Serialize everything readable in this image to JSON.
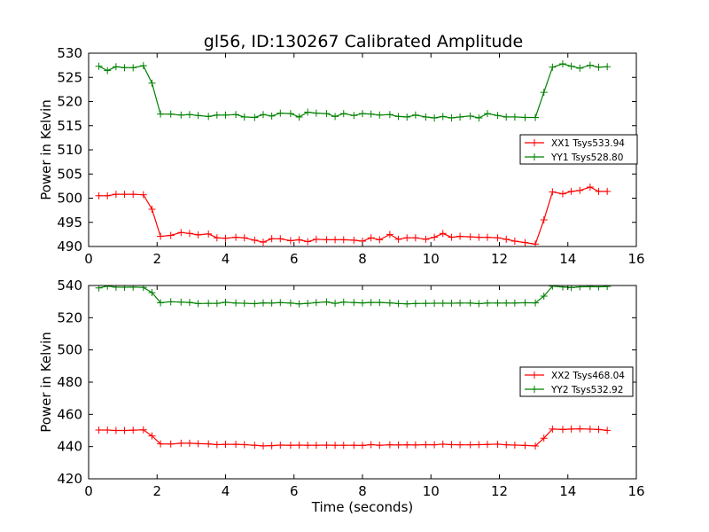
{
  "title": "gl56, ID:130267 Calibrated Amplitude",
  "chart_data": [
    {
      "type": "line",
      "title": "gl56, ID:130267 Calibrated Amplitude",
      "xlabel": "",
      "ylabel": "Power in Kelvin",
      "xlim": [
        0,
        16
      ],
      "ylim": [
        490,
        530
      ],
      "xticks": [
        0,
        2,
        4,
        6,
        8,
        10,
        12,
        14,
        16
      ],
      "yticks": [
        490,
        495,
        500,
        505,
        510,
        515,
        520,
        525,
        530
      ],
      "grid": false,
      "legend_position": "center-right",
      "x": [
        0.3,
        0.55,
        0.8,
        1.05,
        1.3,
        1.6,
        1.85,
        2.1,
        2.4,
        2.7,
        2.95,
        3.2,
        3.5,
        3.75,
        4.0,
        4.3,
        4.55,
        4.85,
        5.1,
        5.35,
        5.6,
        5.9,
        6.15,
        6.4,
        6.65,
        6.95,
        7.2,
        7.45,
        7.75,
        8.0,
        8.25,
        8.5,
        8.8,
        9.05,
        9.3,
        9.55,
        9.85,
        10.1,
        10.35,
        10.6,
        10.85,
        11.15,
        11.4,
        11.65,
        11.95,
        12.2,
        12.45,
        12.75,
        13.05,
        13.3,
        13.55,
        13.85,
        14.1,
        14.35,
        14.65,
        14.9,
        15.15
      ],
      "series": [
        {
          "name": "XX1 Tsys533.94",
          "color": "#ff0000",
          "values": [
            500.5,
            500.5,
            500.8,
            500.8,
            500.8,
            500.7,
            497.7,
            492.1,
            492.3,
            492.9,
            492.7,
            492.4,
            492.6,
            491.8,
            491.7,
            491.9,
            491.8,
            491.3,
            490.9,
            491.6,
            491.6,
            491.2,
            491.4,
            491.0,
            491.5,
            491.4,
            491.4,
            491.4,
            491.3,
            491.1,
            491.8,
            491.4,
            492.5,
            491.5,
            491.8,
            491.8,
            491.5,
            491.9,
            492.7,
            491.9,
            492.1,
            492.0,
            491.9,
            491.9,
            491.8,
            491.5,
            491.1,
            490.8,
            490.5,
            495.5,
            501.3,
            500.9,
            501.4,
            501.6,
            502.3,
            501.4,
            501.4
          ]
        },
        {
          "name": "YY1 Tsys528.80",
          "color": "#008000",
          "values": [
            527.3,
            526.4,
            527.2,
            527.0,
            527.0,
            527.4,
            523.8,
            517.4,
            517.4,
            517.2,
            517.3,
            517.1,
            516.9,
            517.2,
            517.2,
            517.3,
            516.8,
            516.7,
            517.3,
            517.0,
            517.6,
            517.5,
            516.8,
            517.8,
            517.6,
            517.5,
            516.9,
            517.5,
            517.1,
            517.5,
            517.4,
            517.2,
            517.3,
            516.9,
            516.8,
            517.2,
            516.8,
            516.6,
            516.9,
            516.6,
            516.8,
            517.0,
            516.6,
            517.5,
            517.1,
            516.8,
            516.8,
            516.7,
            516.7,
            521.9,
            527.1,
            527.8,
            527.3,
            526.9,
            527.5,
            527.1,
            527.2
          ]
        }
      ]
    },
    {
      "type": "line",
      "title": "",
      "xlabel": "Time (seconds)",
      "ylabel": "Power in Kelvin",
      "xlim": [
        0,
        16
      ],
      "ylim": [
        420,
        540
      ],
      "xticks": [
        0,
        2,
        4,
        6,
        8,
        10,
        12,
        14,
        16
      ],
      "yticks": [
        420,
        440,
        460,
        480,
        500,
        520,
        540
      ],
      "grid": false,
      "legend_position": "center-right",
      "x": [
        0.3,
        0.55,
        0.8,
        1.05,
        1.3,
        1.6,
        1.85,
        2.1,
        2.4,
        2.7,
        2.95,
        3.2,
        3.5,
        3.75,
        4.0,
        4.3,
        4.55,
        4.85,
        5.1,
        5.35,
        5.6,
        5.9,
        6.15,
        6.4,
        6.65,
        6.95,
        7.2,
        7.45,
        7.75,
        8.0,
        8.25,
        8.5,
        8.8,
        9.05,
        9.3,
        9.55,
        9.85,
        10.1,
        10.35,
        10.6,
        10.85,
        11.15,
        11.4,
        11.65,
        11.95,
        12.2,
        12.45,
        12.75,
        13.05,
        13.3,
        13.55,
        13.85,
        14.1,
        14.35,
        14.65,
        14.9,
        15.15
      ],
      "series": [
        {
          "name": "XX2 Tsys468.04",
          "color": "#ff0000",
          "values": [
            450.3,
            450.3,
            450.0,
            450.0,
            450.2,
            450.4,
            446.6,
            441.7,
            441.6,
            442.1,
            442.1,
            441.8,
            441.7,
            441.2,
            441.4,
            441.4,
            441.2,
            440.8,
            440.4,
            440.6,
            440.9,
            440.8,
            440.9,
            440.8,
            440.8,
            440.9,
            440.8,
            440.8,
            440.8,
            440.7,
            441.2,
            440.8,
            441.1,
            441.0,
            441.1,
            441.0,
            441.2,
            441.1,
            441.5,
            441.2,
            441.1,
            441.1,
            441.2,
            441.3,
            441.5,
            441.1,
            440.9,
            440.7,
            440.4,
            445.2,
            450.9,
            450.6,
            450.9,
            451.0,
            450.8,
            450.6,
            450.1
          ]
        },
        {
          "name": "YY2 Tsys532.92",
          "color": "#008000",
          "values": [
            538.5,
            539.6,
            539.0,
            538.9,
            539.0,
            538.8,
            535.6,
            529.3,
            529.9,
            529.7,
            529.5,
            528.8,
            528.9,
            528.9,
            529.6,
            529.1,
            529.0,
            528.7,
            529.2,
            529.1,
            529.4,
            529.1,
            528.6,
            528.9,
            529.4,
            529.8,
            528.9,
            529.7,
            529.4,
            529.2,
            529.5,
            529.5,
            529.2,
            528.8,
            528.6,
            528.8,
            528.9,
            529.0,
            529.0,
            529.0,
            529.1,
            529.1,
            528.7,
            529.1,
            529.1,
            529.1,
            529.1,
            529.3,
            529.2,
            533.4,
            539.6,
            539.1,
            538.7,
            539.2,
            539.3,
            539.2,
            539.4
          ]
        }
      ]
    }
  ]
}
